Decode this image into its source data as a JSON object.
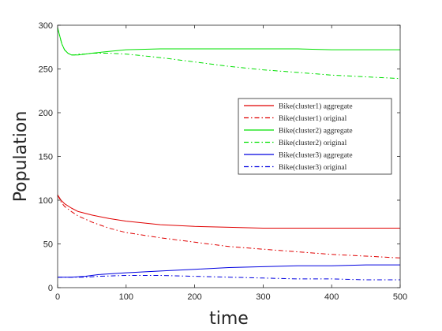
{
  "chart_data": {
    "type": "line",
    "title": "",
    "xlabel": "time",
    "ylabel": "Population",
    "xlim": [
      0,
      500
    ],
    "ylim": [
      0,
      300
    ],
    "xticks": [
      0,
      100,
      200,
      300,
      400,
      500
    ],
    "yticks": [
      0,
      50,
      100,
      150,
      200,
      250,
      300
    ],
    "grid": false,
    "legend_position": "right",
    "series": [
      {
        "name": "Bike(cluster1) aggregate",
        "color": "#e00000",
        "dash": "solid",
        "x": [
          0,
          5,
          10,
          20,
          30,
          50,
          75,
          100,
          150,
          200,
          250,
          300,
          350,
          400,
          450,
          500
        ],
        "y": [
          106,
          100,
          96,
          91,
          87,
          83,
          79,
          76,
          72,
          70,
          69,
          68,
          68,
          68,
          68,
          68
        ]
      },
      {
        "name": "Bike(cluster1) original",
        "color": "#e00000",
        "dash": "dashdot",
        "x": [
          0,
          5,
          10,
          20,
          30,
          50,
          75,
          100,
          150,
          200,
          250,
          300,
          350,
          400,
          450,
          500
        ],
        "y": [
          106,
          98,
          93,
          87,
          82,
          75,
          68,
          63,
          57,
          52,
          47,
          44,
          41,
          38,
          36,
          34
        ]
      },
      {
        "name": "Bike(cluster2) aggregate",
        "color": "#00e000",
        "dash": "solid",
        "x": [
          0,
          3,
          6,
          10,
          15,
          20,
          25,
          30,
          40,
          50,
          75,
          100,
          150,
          200,
          250,
          300,
          350,
          400,
          450,
          500
        ],
        "y": [
          297,
          288,
          279,
          272,
          268,
          266,
          266,
          266,
          267,
          268,
          270,
          272,
          273,
          273,
          273,
          273,
          273,
          272,
          272,
          272
        ]
      },
      {
        "name": "Bike(cluster2) original",
        "color": "#00e000",
        "dash": "dashdot",
        "x": [
          0,
          3,
          6,
          10,
          15,
          20,
          25,
          30,
          40,
          50,
          75,
          100,
          150,
          200,
          250,
          300,
          350,
          400,
          450,
          500
        ],
        "y": [
          297,
          288,
          279,
          272,
          268,
          266,
          266,
          267,
          267,
          268,
          268,
          267,
          263,
          258,
          253,
          249,
          246,
          243,
          241,
          239
        ]
      },
      {
        "name": "Bike(cluster3) aggregate",
        "color": "#0000e0",
        "dash": "solid",
        "x": [
          0,
          20,
          40,
          60,
          100,
          150,
          200,
          250,
          300,
          350,
          400,
          450,
          500
        ],
        "y": [
          12,
          12,
          13,
          15,
          17,
          19,
          21,
          23,
          24,
          25,
          25,
          26,
          26
        ]
      },
      {
        "name": "Bike(cluster3) original",
        "color": "#0000e0",
        "dash": "dashdot",
        "x": [
          0,
          20,
          40,
          60,
          100,
          150,
          200,
          250,
          300,
          350,
          400,
          450,
          500
        ],
        "y": [
          12,
          12,
          12,
          13,
          14,
          14,
          13,
          12,
          11,
          10,
          10,
          9,
          9
        ]
      }
    ]
  }
}
